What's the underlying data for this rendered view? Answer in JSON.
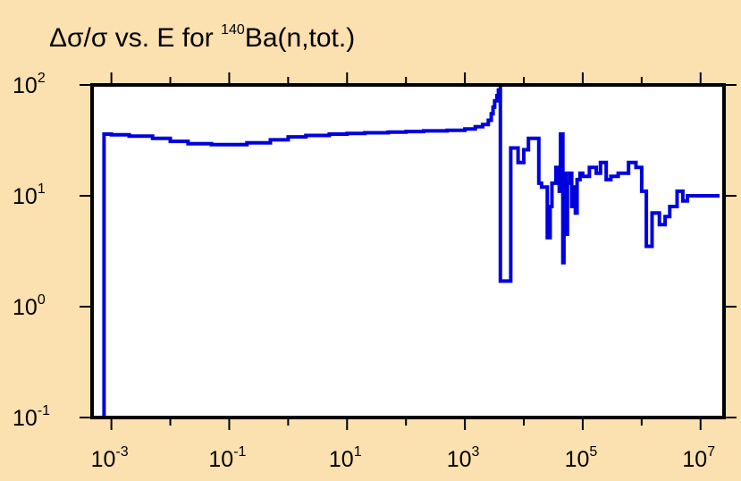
{
  "chart_data": {
    "type": "line",
    "title": {
      "prefix": "Δσ/σ vs. E for ",
      "isotope_mass": "140",
      "suffix": "Ba(n,tot.)"
    },
    "xlabel": "",
    "ylabel": "",
    "x_scale": "log",
    "y_scale": "log",
    "xlim": [
      0.00047,
      25000000
    ],
    "ylim": [
      0.1,
      100
    ],
    "x_ticks": [
      {
        "base": "10",
        "exp": "-3",
        "value": 0.001
      },
      {
        "base": "10",
        "exp": "-1",
        "value": 0.1
      },
      {
        "base": "10",
        "exp": "1",
        "value": 10
      },
      {
        "base": "10",
        "exp": "3",
        "value": 1000
      },
      {
        "base": "10",
        "exp": "5",
        "value": 100000
      },
      {
        "base": "10",
        "exp": "7",
        "value": 10000000
      }
    ],
    "y_ticks": [
      {
        "base": "10",
        "exp": "2",
        "value": 100
      },
      {
        "base": "10",
        "exp": "1",
        "value": 10
      },
      {
        "base": "10",
        "exp": "0",
        "value": 1
      },
      {
        "base": "10",
        "exp": "-1",
        "value": 0.1
      }
    ],
    "grid": false,
    "line_color": "#0000dd",
    "series": [
      {
        "step": true,
        "x": [
          0.00075,
          0.00075,
          0.001,
          0.002,
          0.005,
          0.01,
          0.02,
          0.05,
          0.1,
          0.2,
          0.5,
          1,
          2,
          5,
          10,
          20,
          50,
          100,
          200,
          500,
          1000,
          1500,
          2000,
          2500,
          2800,
          3000,
          3200,
          3500,
          3700,
          4000,
          4000,
          6000,
          6000,
          8000,
          8000,
          10000,
          10000,
          12000,
          15000,
          18000,
          20000,
          25000,
          28000,
          30000,
          35000,
          40000,
          42000,
          46000,
          48000,
          52000,
          55000,
          60000,
          65000,
          70000,
          75000,
          80000,
          90000,
          100000,
          130000,
          170000,
          200000,
          250000,
          300000,
          400000,
          600000,
          800000,
          1000000,
          1200000,
          1500000,
          2000000,
          2500000,
          3000000,
          4000000,
          5000000,
          6000000,
          8000000,
          10000000,
          12000000,
          15000000,
          18000000,
          21000000
        ],
        "y": [
          0.1,
          36,
          35.5,
          34.5,
          33,
          31,
          29.5,
          29,
          29,
          30,
          32,
          34,
          35,
          36,
          36.5,
          37,
          37.5,
          38,
          38.5,
          39,
          40,
          42,
          44,
          48,
          55,
          63,
          72,
          80,
          90,
          100,
          1.7,
          1.7,
          27,
          27,
          20,
          20,
          26,
          33,
          33,
          13,
          12,
          4.2,
          8,
          13,
          18,
          11,
          36,
          2.5,
          16,
          4.5,
          13,
          16,
          8,
          12,
          7,
          14,
          16,
          15,
          18,
          16,
          20,
          14,
          15,
          16,
          20,
          18,
          11,
          3.5,
          7,
          5.5,
          6.5,
          8,
          11,
          9,
          10,
          10,
          10,
          10,
          10,
          10,
          10
        ]
      }
    ]
  }
}
